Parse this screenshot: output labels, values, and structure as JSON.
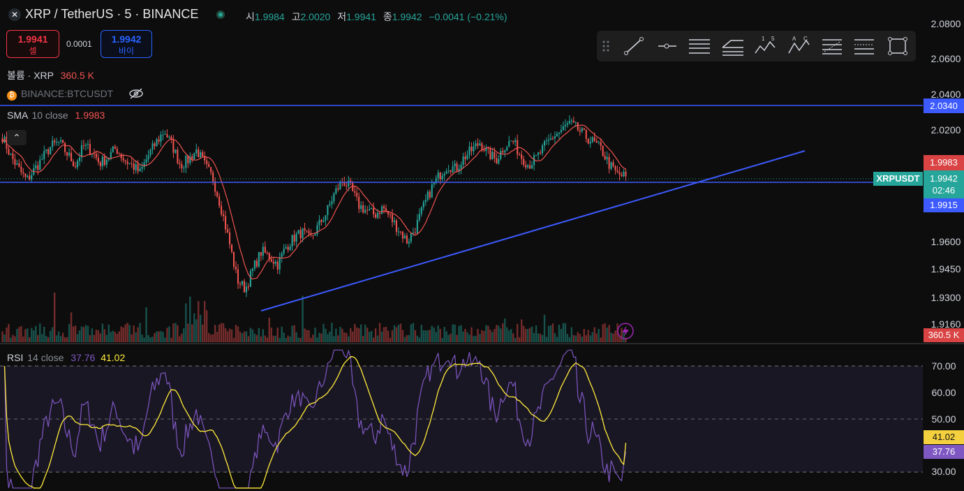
{
  "header": {
    "symbol_title": "XRP / TetherUS · 5 · BINANCE",
    "ohlc": {
      "open_label": "시",
      "open": "1.9984",
      "high_label": "고",
      "high": "2.0020",
      "low_label": "저",
      "low": "1.9941",
      "close_label": "종",
      "close": "1.9942",
      "change": "−0.0041 (−0.21%)"
    }
  },
  "trade": {
    "sell_price": "1.9941",
    "sell_label": "셀",
    "spread": "0.0001",
    "buy_price": "1.9942",
    "buy_label": "바이"
  },
  "legends": {
    "volume": {
      "name": "볼륨 · XRP",
      "value": "360.5 K"
    },
    "compare": {
      "name": "BINANCE:BTCUSDT"
    },
    "sma": {
      "name": "SMA",
      "params": "10 close",
      "value": "1.9983"
    },
    "rsi": {
      "name": "RSI",
      "params": "14 close",
      "value1": "37.76",
      "value2": "41.02"
    }
  },
  "price_axis": {
    "labels": [
      "2.0800",
      "2.0600",
      "2.0400",
      "2.0200",
      "1.9600",
      "1.9450",
      "1.9300",
      "1.9160"
    ],
    "tag_level": "2.0340",
    "tag_sma": "1.9983",
    "tag_last": "1.9942",
    "tag_countdown": "02:46",
    "tag_low": "1.9915",
    "tag_volume": "360.5 K",
    "symbol_label": "XRPUSDT"
  },
  "rsi_axis": {
    "labels": [
      "70.00",
      "60.00",
      "50.00",
      "30.00"
    ],
    "tag_ma": "41.02",
    "tag_rsi": "37.76"
  },
  "colors": {
    "up": "#26a69a",
    "down": "#ef5350",
    "sma": "#ef5350",
    "rsi": "#7e57c2",
    "rsi_ma": "#ffeb3b",
    "drawing": "#3d5afe",
    "background": "#0d0d0d"
  },
  "toolbar": {
    "tools": [
      "drag-handle-icon",
      "trend-line-icon",
      "horizontal-ray-icon",
      "parallel-channel-icon",
      "pitchfork-icon",
      "elliott-wave-icon",
      "abcd-pattern-icon",
      "fib-retracement-icon",
      "fib-extension-icon",
      "rectangle-icon"
    ],
    "elliott_labels": [
      "1",
      "5"
    ],
    "abcd_labels": [
      "A",
      "C"
    ]
  },
  "chart_data": {
    "type": "candlestick",
    "symbol": "XRPUSDT",
    "interval": "5",
    "ylim": [
      1.916,
      2.08
    ],
    "approx_close_path": [
      2.015,
      2.005,
      1.998,
      1.992,
      1.998,
      2.004,
      2.01,
      2.012,
      2.006,
      2.0,
      2.01,
      2.008,
      2.001,
      2.004,
      2.009,
      2.003,
      2.0,
      1.996,
      2.005,
      2.012,
      2.018,
      2.01,
      2.0,
      2.003,
      2.008,
      2.0,
      1.993,
      1.978,
      1.96,
      1.94,
      1.935,
      1.946,
      1.955,
      1.952,
      1.948,
      1.957,
      1.962,
      1.965,
      1.961,
      1.968,
      1.975,
      1.985,
      1.992,
      1.988,
      1.979,
      1.976,
      1.974,
      1.978,
      1.972,
      1.966,
      1.96,
      1.967,
      1.978,
      1.988,
      1.995,
      2.0,
      1.998,
      2.004,
      2.008,
      2.012,
      2.006,
      2.003,
      2.01,
      2.013,
      2.005,
      2.0,
      2.004,
      2.01,
      2.015,
      2.018,
      2.022,
      2.019,
      2.015,
      2.012,
      2.008,
      2.0,
      1.995,
      1.9942
    ],
    "sma10_last": 1.9983,
    "horizontal_levels": [
      2.034,
      1.9915
    ],
    "trendline": {
      "from": 1.934,
      "to": 2.01
    },
    "volume_last": "360.5 K",
    "rsi": {
      "ylim": [
        30,
        70
      ],
      "levels": [
        70,
        50,
        30
      ],
      "last_rsi": 37.76,
      "last_ma": 41.02
    }
  }
}
